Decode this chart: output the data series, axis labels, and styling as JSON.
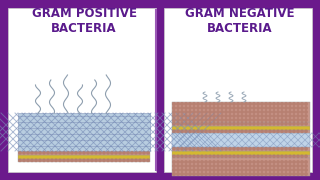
{
  "bg_outer": "#6b1a8c",
  "bg_inner": "#ffffff",
  "title_color": "#5a1a8c",
  "divider_color": "#9b59b6",
  "left_title": "GRAM POSITIVE\nBACTERIA",
  "right_title": "GRAM NEGATIVE\nBACTERIA",
  "pink": "#c9968a",
  "pink_dark": "#b07868",
  "yellow": "#d4b830",
  "blue_light": "#b0c4d8",
  "blue_mid": "#8aaccb",
  "blue_dark": "#6a8aaa",
  "font_size": 8.5
}
